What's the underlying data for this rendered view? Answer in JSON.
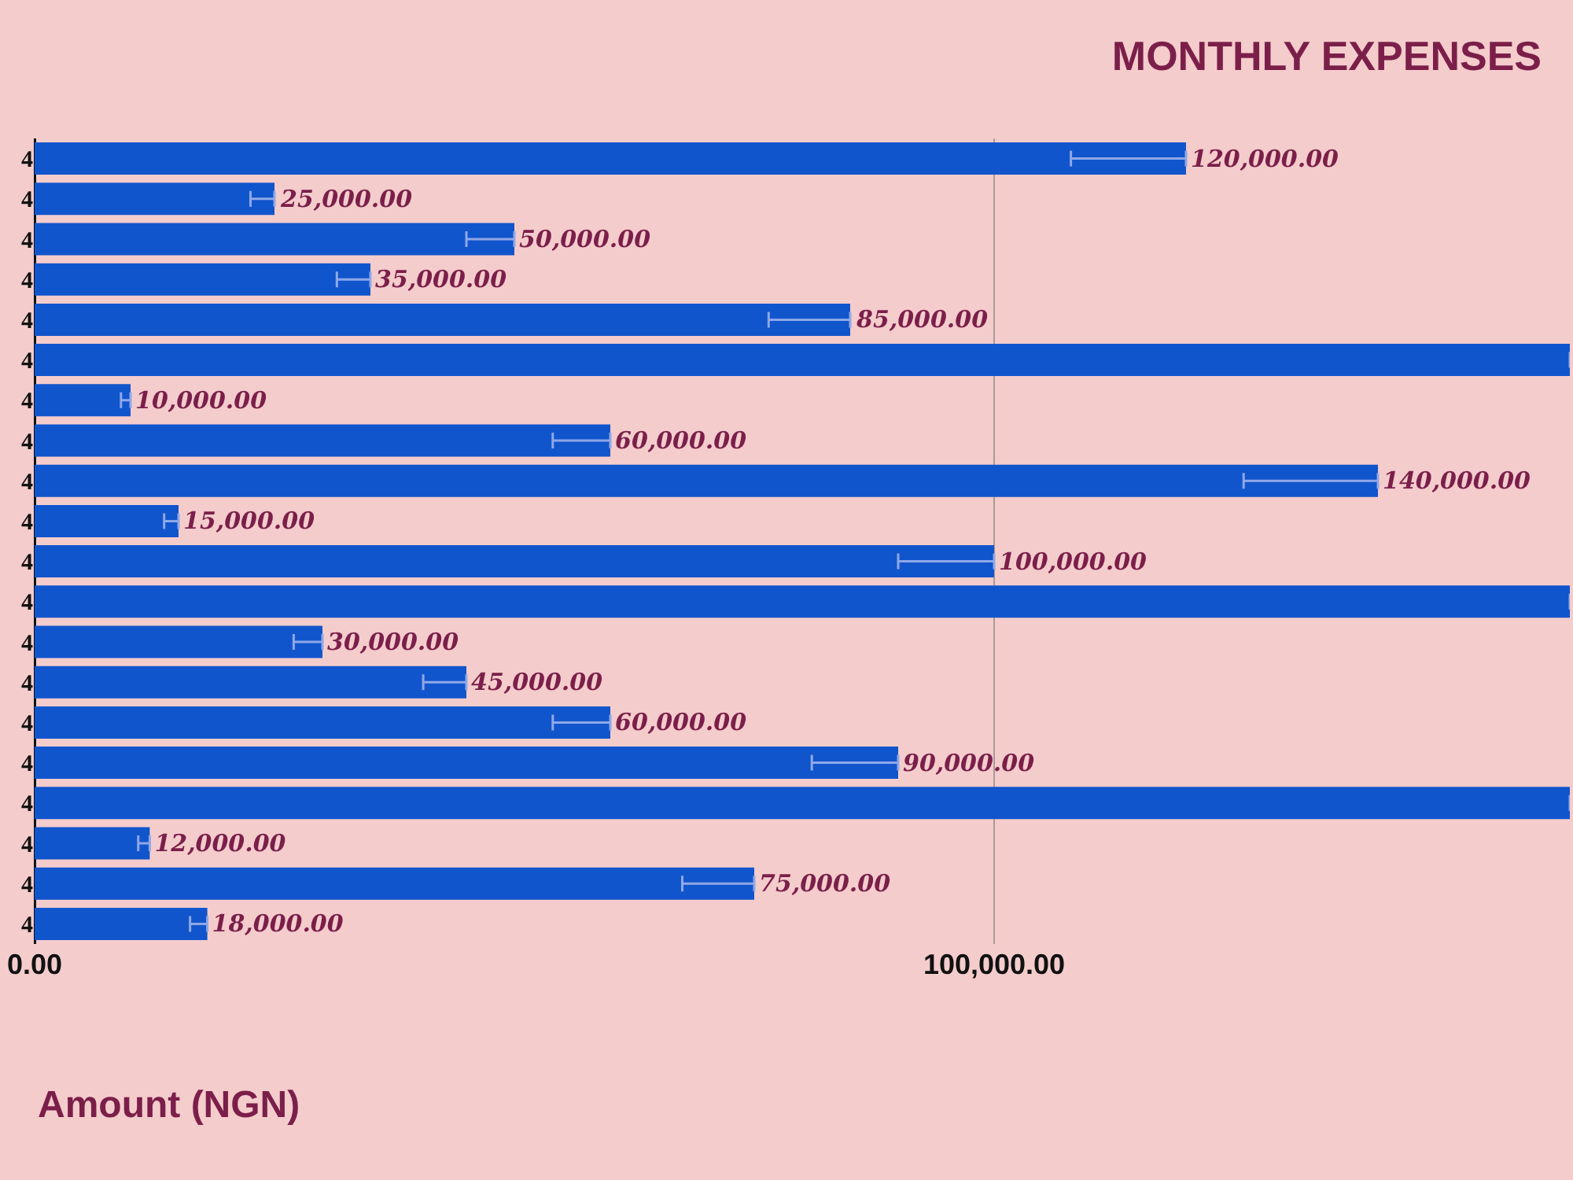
{
  "chart_data": {
    "type": "bar",
    "orientation": "horizontal",
    "title": "MONTHLY EXPENSES",
    "xlabel": "Amount (NGN)",
    "categories": [
      "4",
      "4",
      "4",
      "4",
      "4",
      "4",
      "4",
      "4",
      "4",
      "4",
      "4",
      "4",
      "4",
      "4",
      "4",
      "4",
      "4",
      "4",
      "4",
      "4"
    ],
    "values": [
      120000,
      25000,
      50000,
      35000,
      85000,
      160000,
      10000,
      60000,
      140000,
      15000,
      100000,
      160000,
      30000,
      45000,
      60000,
      90000,
      160000,
      12000,
      75000,
      18000
    ],
    "value_labels": [
      "120,000.00",
      "25,000.00",
      "50,000.00",
      "35,000.00",
      "85,000.00",
      null,
      "10,000.00",
      "60,000.00",
      "140,000.00",
      "15,000.00",
      "100,000.00",
      null,
      "30,000.00",
      "45,000.00",
      "60,000.00",
      "90,000.00",
      null,
      "12,000.00",
      "75,000.00",
      "18,000.00"
    ],
    "errors": [
      [
        108000,
        120000
      ],
      [
        22500,
        25000
      ],
      [
        45000,
        50000
      ],
      [
        31500,
        35000
      ],
      [
        76500,
        85000
      ],
      null,
      [
        9000,
        10000
      ],
      [
        54000,
        60000
      ],
      [
        126000,
        140000
      ],
      [
        13500,
        15000
      ],
      [
        90000,
        100000
      ],
      null,
      [
        27000,
        30000
      ],
      [
        40500,
        45000
      ],
      [
        54000,
        60000
      ],
      [
        81000,
        90000
      ],
      null,
      [
        10800,
        12000
      ],
      [
        67500,
        75000
      ],
      [
        16200,
        18000
      ]
    ],
    "color": "#1155cc",
    "xlim": [
      0,
      160000
    ],
    "xticks": [
      {
        "value": 0,
        "label": "0.00"
      },
      {
        "value": 100000,
        "label": "100,000.00"
      }
    ],
    "grid": "x"
  }
}
